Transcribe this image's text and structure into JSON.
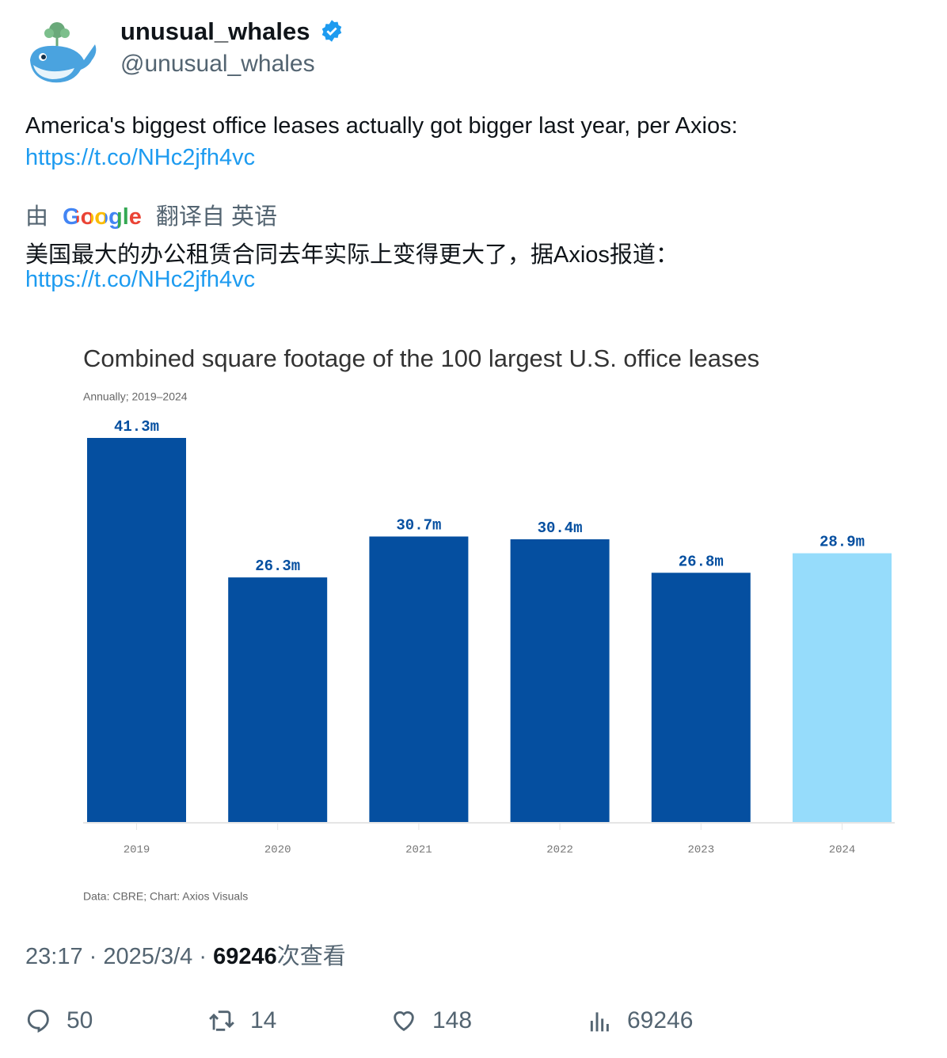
{
  "user": {
    "name": "unusual_whales",
    "handle": "@unusual_whales"
  },
  "tweet": {
    "text": "America's biggest office leases actually got bigger last year, per Axios:",
    "link": "https://t.co/NHc2jfh4vc"
  },
  "translation": {
    "by": "由",
    "provider": "Google",
    "from": "翻译自 英语",
    "text": "美国最大的办公租赁合同去年实际上变得更大了，据Axios报道：",
    "link": "https://t.co/NHc2jfh4vc"
  },
  "chart_data": {
    "type": "bar",
    "title": "Combined square footage of the 100 largest U.S. office leases",
    "subtitle": "Annually; 2019–2024",
    "categories": [
      "2019",
      "2020",
      "2021",
      "2022",
      "2023",
      "2024"
    ],
    "values": [
      41.3,
      26.3,
      30.7,
      30.4,
      26.8,
      28.9
    ],
    "value_labels": [
      "41.3m",
      "26.3m",
      "30.7m",
      "30.4m",
      "26.8m",
      "28.9m"
    ],
    "colors": [
      "#054fa0",
      "#054fa0",
      "#054fa0",
      "#054fa0",
      "#054fa0",
      "#96dcfb"
    ],
    "source": "Data: CBRE; Chart: Axios Visuals"
  },
  "footer": {
    "time": "23:17",
    "separator": "·",
    "date": "2025/3/4",
    "views": "69246",
    "views_label": "次查看"
  },
  "actions": {
    "replies": "50",
    "retweets": "14",
    "likes": "148",
    "views": "69246"
  }
}
